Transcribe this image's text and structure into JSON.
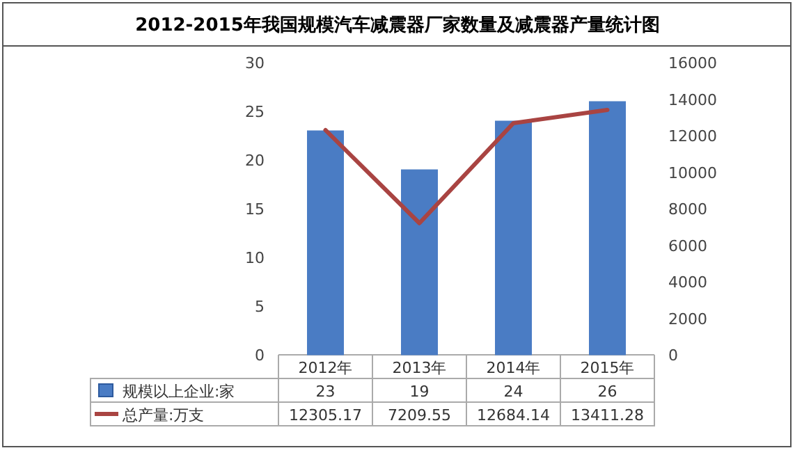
{
  "chart_data": {
    "type": "bar",
    "title": "2012-2015年我国规模汽车减震器厂家数量及减震器产量统计图",
    "categories": [
      "2012年",
      "2013年",
      "2014年",
      "2015年"
    ],
    "series": [
      {
        "name": "规模以上企业:家",
        "color": "#4a7cc4",
        "values": [
          23,
          19,
          24,
          26
        ]
      },
      {
        "name": "总产量:万支",
        "color": "#a94442",
        "type": "line",
        "axis": "y2",
        "values": [
          12305.17,
          7209.55,
          12684.14,
          13411.28
        ]
      }
    ],
    "ylim": [
      0,
      30
    ],
    "yticks": [
      0,
      5,
      10,
      15,
      20,
      25,
      30
    ],
    "y2lim": [
      0,
      16000
    ],
    "y2ticks": [
      0,
      2000,
      4000,
      6000,
      8000,
      10000,
      12000,
      14000,
      16000
    ],
    "data_labels": true,
    "legend": "bottom"
  }
}
